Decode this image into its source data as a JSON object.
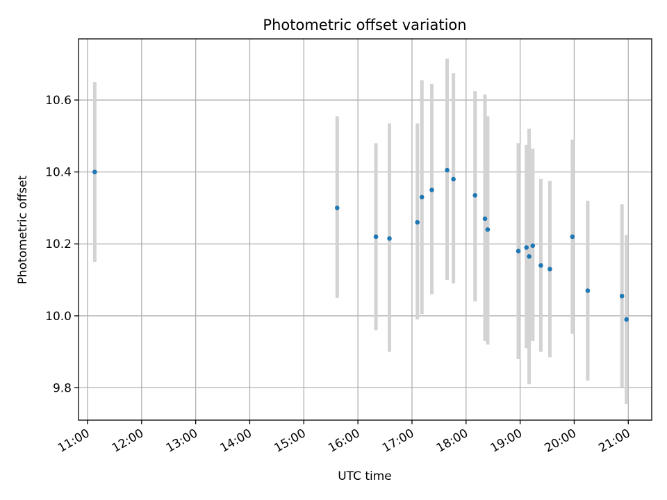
{
  "chart_data": {
    "type": "scatter",
    "title": "Photometric offset variation",
    "xlabel": "UTC time",
    "ylabel": "Photometric offset",
    "grid": true,
    "legend": "none",
    "x_ticks": [
      "11:00",
      "12:00",
      "13:00",
      "14:00",
      "15:00",
      "16:00",
      "17:00",
      "18:00",
      "19:00",
      "20:00",
      "21:00"
    ],
    "y_ticks": [
      "9.8",
      "10.0",
      "10.2",
      "10.4",
      "10.6"
    ],
    "xlim": [
      "10:50",
      "21:26"
    ],
    "ylim": [
      9.71,
      10.77
    ],
    "series": [
      {
        "color": "#1f77b4",
        "errorbar_color": "#d3d3d3",
        "points": [
          {
            "time": "11:08",
            "y": 10.4,
            "low": 10.15,
            "high": 10.65
          },
          {
            "time": "15:37",
            "y": 10.3,
            "low": 10.05,
            "high": 10.555
          },
          {
            "time": "16:20",
            "y": 10.22,
            "low": 9.96,
            "high": 10.48
          },
          {
            "time": "16:35",
            "y": 10.215,
            "low": 9.9,
            "high": 10.535
          },
          {
            "time": "17:06",
            "y": 10.26,
            "low": 9.99,
            "high": 10.535
          },
          {
            "time": "17:11",
            "y": 10.33,
            "low": 10.005,
            "high": 10.655
          },
          {
            "time": "17:22",
            "y": 10.35,
            "low": 10.06,
            "high": 10.645
          },
          {
            "time": "17:39",
            "y": 10.405,
            "low": 10.1,
            "high": 10.715
          },
          {
            "time": "17:46",
            "y": 10.38,
            "low": 10.09,
            "high": 10.675
          },
          {
            "time": "18:10",
            "y": 10.335,
            "low": 10.04,
            "high": 10.625
          },
          {
            "time": "18:21",
            "y": 10.27,
            "low": 9.93,
            "high": 10.615
          },
          {
            "time": "18:24",
            "y": 10.24,
            "low": 9.92,
            "high": 10.555
          },
          {
            "time": "18:58",
            "y": 10.18,
            "low": 9.88,
            "high": 10.48
          },
          {
            "time": "19:07",
            "y": 10.19,
            "low": 9.91,
            "high": 10.475
          },
          {
            "time": "19:10",
            "y": 10.165,
            "low": 9.81,
            "high": 10.52
          },
          {
            "time": "19:14",
            "y": 10.195,
            "low": 9.93,
            "high": 10.465
          },
          {
            "time": "19:23",
            "y": 10.14,
            "low": 9.9,
            "high": 10.38
          },
          {
            "time": "19:33",
            "y": 10.13,
            "low": 9.885,
            "high": 10.375
          },
          {
            "time": "19:58",
            "y": 10.22,
            "low": 9.95,
            "high": 10.49
          },
          {
            "time": "20:15",
            "y": 10.07,
            "low": 9.82,
            "high": 10.32
          },
          {
            "time": "20:53",
            "y": 10.055,
            "low": 9.8,
            "high": 10.31
          },
          {
            "time": "20:58",
            "y": 9.99,
            "low": 9.755,
            "high": 10.225
          }
        ]
      }
    ]
  }
}
